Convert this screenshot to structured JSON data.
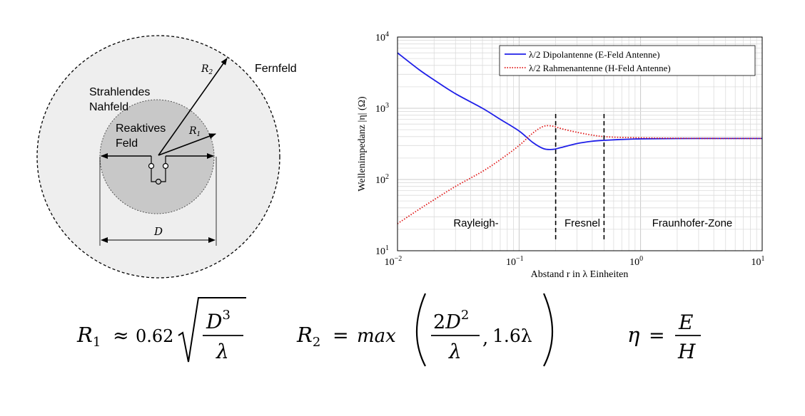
{
  "diagram": {
    "region_labels": {
      "strahlendes_line1": "Strahlendes",
      "strahlendes_line2": "Nahfeld",
      "fernfeld": "Fernfeld",
      "reaktives_line1": "Reaktives",
      "reaktives_line2": "Feld"
    },
    "radius_labels": {
      "r1_base": "R",
      "r1_sub": "1",
      "r2_base": "R",
      "r2_sub": "2"
    },
    "dimension_label": "D",
    "colors": {
      "outer_fill": "#eeeeee",
      "inner_fill": "#c8c8c8",
      "stroke": "#000000"
    }
  },
  "chart_data": {
    "type": "line",
    "xscale": "log",
    "yscale": "log",
    "xlim": [
      0.01,
      10
    ],
    "ylim": [
      10,
      10000
    ],
    "xlabel": "Abstand r in λ Einheiten",
    "ylabel": "Wellenimpedanz |η| (Ω)",
    "x_ticks": [
      {
        "base": "10",
        "exp": "−2"
      },
      {
        "base": "10",
        "exp": "−1"
      },
      {
        "base": "10",
        "exp": "0"
      },
      {
        "base": "10",
        "exp": "1"
      }
    ],
    "y_ticks": [
      {
        "base": "10",
        "exp": "1"
      },
      {
        "base": "10",
        "exp": "2"
      },
      {
        "base": "10",
        "exp": "3"
      },
      {
        "base": "10",
        "exp": "4"
      }
    ],
    "grid": true,
    "legend_position": "top-right",
    "series": [
      {
        "name": "λ/2 Dipolantenne (E-Feld Antenne)",
        "color": "#1f1fe8",
        "style": "solid",
        "x": [
          0.01,
          0.015,
          0.02,
          0.03,
          0.05,
          0.07,
          0.1,
          0.13,
          0.16,
          0.19,
          0.22,
          0.3,
          0.4,
          0.5,
          0.7,
          1,
          2,
          5,
          10
        ],
        "y": [
          6000,
          3500,
          2500,
          1600,
          1000,
          700,
          480,
          330,
          270,
          265,
          280,
          320,
          345,
          355,
          365,
          372,
          376,
          377,
          377
        ]
      },
      {
        "name": "λ/2 Rahmenantenne (H-Feld Antenne)",
        "color": "#e01818",
        "style": "dotted",
        "x": [
          0.01,
          0.015,
          0.02,
          0.03,
          0.05,
          0.07,
          0.1,
          0.13,
          0.16,
          0.19,
          0.22,
          0.3,
          0.4,
          0.5,
          0.7,
          1,
          2,
          5,
          10
        ],
        "y": [
          24,
          38,
          52,
          80,
          130,
          190,
          300,
          450,
          560,
          560,
          520,
          460,
          420,
          400,
          390,
          385,
          379,
          377,
          377
        ]
      }
    ],
    "vlines": [
      0.2,
      0.5
    ],
    "zone_labels": [
      "Rayleigh-",
      "Fresnel",
      "Fraunhofer-Zone"
    ]
  },
  "formulas": {
    "r1": {
      "lhs": "R",
      "lhs_sub": "1",
      "op": "≈",
      "coef": "0.62",
      "num": "D",
      "num_exp": "3",
      "den": "λ"
    },
    "r2": {
      "lhs": "R",
      "lhs_sub": "2",
      "op": "=",
      "func": "max",
      "num_coef": "2",
      "num_var": "D",
      "num_exp": "2",
      "den": "λ",
      "second": "1.6λ",
      "comma": ","
    },
    "eta": {
      "lhs": "η",
      "op": "=",
      "num": "E",
      "den": "H"
    }
  }
}
